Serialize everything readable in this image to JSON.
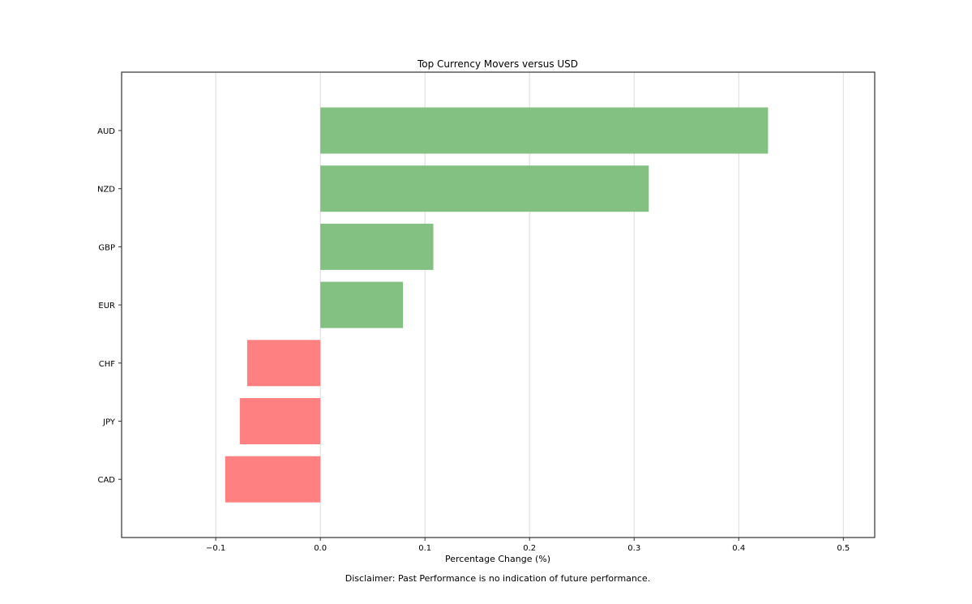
{
  "chart_data": {
    "type": "bar",
    "orientation": "horizontal",
    "title": "Top Currency Movers versus USD",
    "xlabel": "Percentage Change (%)",
    "ylabel": "",
    "categories": [
      "AUD",
      "NZD",
      "GBP",
      "EUR",
      "CHF",
      "JPY",
      "CAD"
    ],
    "values": [
      0.428,
      0.314,
      0.108,
      0.079,
      -0.07,
      -0.077,
      -0.091
    ],
    "xlim": [
      -0.19,
      0.53
    ],
    "xticks": [
      -0.1,
      0.0,
      0.1,
      0.2,
      0.3,
      0.4,
      0.5
    ],
    "xtick_labels": [
      "−0.1",
      "0.0",
      "0.1",
      "0.2",
      "0.3",
      "0.4",
      "0.5"
    ],
    "grid": "vertical",
    "colors": {
      "positive": "#82c182",
      "negative": "#ff8080",
      "grid": "#dcdcdc",
      "axes": "#333333"
    },
    "annotation": "Disclaimer: Past Performance is no indication of future performance."
  }
}
